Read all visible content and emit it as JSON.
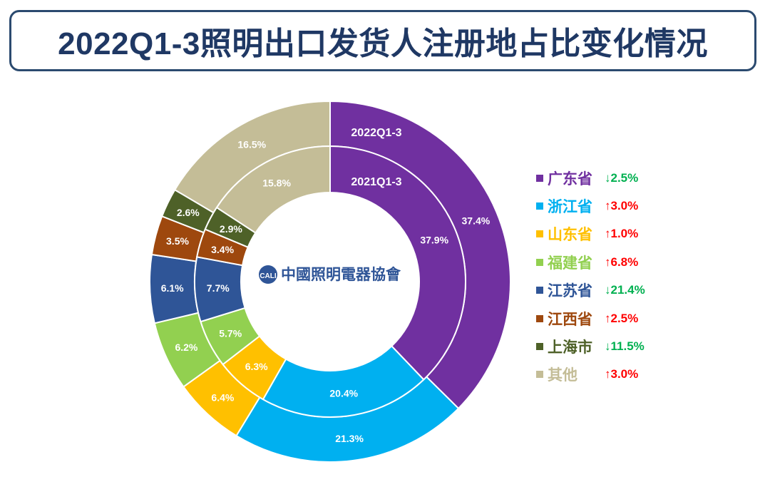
{
  "title": "2022Q1-3照明出口发货人注册地占比变化情况",
  "watermark": {
    "text": "中國照明電器協會",
    "logo": "CALI"
  },
  "chart_data": {
    "type": "donut",
    "title": "2022Q1-3照明出口发货人注册地占比变化情况",
    "categories": [
      "广东省",
      "浙江省",
      "山东省",
      "福建省",
      "江苏省",
      "江西省",
      "上海市",
      "其他"
    ],
    "colors": [
      "#7030a0",
      "#00b0f0",
      "#ffc000",
      "#92d050",
      "#2f5597",
      "#9e480e",
      "#4e6128",
      "#c4bd97"
    ],
    "series": [
      {
        "name": "2022Q1-3",
        "ring": "outer",
        "values": [
          37.4,
          21.3,
          6.4,
          6.2,
          6.1,
          3.5,
          2.6,
          16.5
        ],
        "labels": [
          "37.4%",
          "21.3%",
          "6.4%",
          "6.2%",
          "6.1%",
          "3.5%",
          "2.6%",
          "16.5%"
        ]
      },
      {
        "name": "2021Q1-3",
        "ring": "inner",
        "values": [
          37.9,
          20.4,
          6.3,
          5.7,
          7.7,
          3.4,
          2.9,
          15.8
        ],
        "labels": [
          "37.9%",
          "20.4%",
          "6.3%",
          "5.7%",
          "7.7%",
          "3.4%",
          "2.9%",
          "15.8%"
        ]
      }
    ],
    "changes": [
      {
        "arrow": "↓",
        "value": "2.5%",
        "direction": "down",
        "color": "#00b050"
      },
      {
        "arrow": "↑",
        "value": "3.0%",
        "direction": "up",
        "color": "#ff0000"
      },
      {
        "arrow": "↑",
        "value": "1.0%",
        "direction": "up",
        "color": "#ff0000"
      },
      {
        "arrow": "↑",
        "value": "6.8%",
        "direction": "up",
        "color": "#ff0000"
      },
      {
        "arrow": "↓",
        "value": "21.4%",
        "direction": "down",
        "color": "#00b050"
      },
      {
        "arrow": "↑",
        "value": "2.5%",
        "direction": "up",
        "color": "#ff0000"
      },
      {
        "arrow": "↓",
        "value": "11.5%",
        "direction": "down",
        "color": "#00b050"
      },
      {
        "arrow": "↑",
        "value": "3.0%",
        "direction": "up",
        "color": "#ff0000"
      }
    ],
    "legend_position": "right"
  }
}
